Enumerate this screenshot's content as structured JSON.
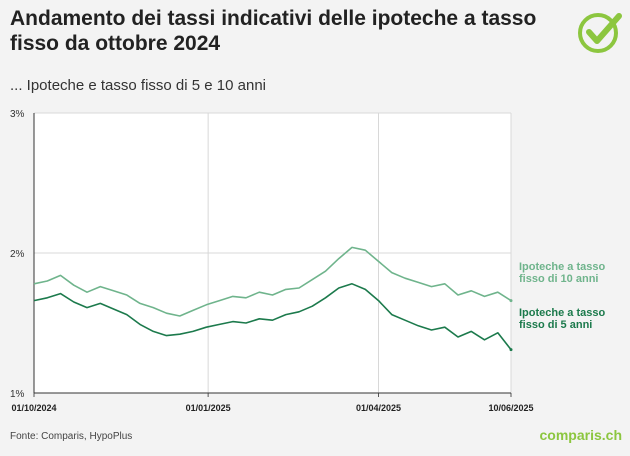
{
  "header": {
    "title": "Andamento dei tassi indicativi delle ipoteche a tasso fisso da ottobre 2024",
    "subtitle": "... Ipoteche e tasso fisso di 5 e 10 anni"
  },
  "footer": {
    "source": "Fonte: Comparis, HypoPlus",
    "brand": "comparis.ch"
  },
  "colors": {
    "series_10y": "#6fb48c",
    "series_5y": "#1c7a4c",
    "brand": "#8cc63f"
  },
  "chart_data": {
    "type": "line",
    "title": "Andamento dei tassi indicativi delle ipoteche a tasso fisso da ottobre 2024",
    "subtitle": "... Ipoteche e tasso fisso di 5 e 10 anni",
    "ylim": [
      1,
      3
    ],
    "y_ticks": [
      "1%",
      "2%",
      "3%"
    ],
    "y_tick_values": [
      1,
      2,
      3
    ],
    "xlim": [
      "2024-10-01",
      "2025-06-10"
    ],
    "x_ticks": [
      "01/10/2024",
      "01/01/2025",
      "01/04/2025",
      "10/06/2025"
    ],
    "x_tick_values": [
      "2024-10-01",
      "2025-01-01",
      "2025-04-01",
      "2025-06-10"
    ],
    "grid": true,
    "series": [
      {
        "name": "Ipoteche a tasso fisso di 10 anni",
        "label_lines": [
          "Ipoteche a tasso",
          "fisso di 10 anni"
        ],
        "x": [
          "2024-10-01",
          "2024-10-08",
          "2024-10-15",
          "2024-10-22",
          "2024-10-29",
          "2024-11-05",
          "2024-11-12",
          "2024-11-19",
          "2024-11-26",
          "2024-12-03",
          "2024-12-10",
          "2024-12-17",
          "2024-12-24",
          "2024-12-31",
          "2025-01-07",
          "2025-01-14",
          "2025-01-21",
          "2025-01-28",
          "2025-02-04",
          "2025-02-11",
          "2025-02-18",
          "2025-02-25",
          "2025-03-04",
          "2025-03-11",
          "2025-03-18",
          "2025-03-25",
          "2025-04-01",
          "2025-04-08",
          "2025-04-15",
          "2025-04-22",
          "2025-04-29",
          "2025-05-06",
          "2025-05-13",
          "2025-05-20",
          "2025-05-27",
          "2025-06-03",
          "2025-06-10"
        ],
        "y": [
          1.78,
          1.8,
          1.84,
          1.77,
          1.72,
          1.76,
          1.73,
          1.7,
          1.64,
          1.61,
          1.57,
          1.55,
          1.59,
          1.63,
          1.66,
          1.69,
          1.68,
          1.72,
          1.7,
          1.74,
          1.75,
          1.81,
          1.87,
          1.96,
          2.04,
          2.02,
          1.94,
          1.86,
          1.82,
          1.79,
          1.76,
          1.78,
          1.7,
          1.73,
          1.69,
          1.72,
          1.66
        ]
      },
      {
        "name": "Ipoteche a tasso fisso di 5 anni",
        "label_lines": [
          "Ipoteche a tasso",
          "fisso di 5 anni"
        ],
        "x": [
          "2024-10-01",
          "2024-10-08",
          "2024-10-15",
          "2024-10-22",
          "2024-10-29",
          "2024-11-05",
          "2024-11-12",
          "2024-11-19",
          "2024-11-26",
          "2024-12-03",
          "2024-12-10",
          "2024-12-17",
          "2024-12-24",
          "2024-12-31",
          "2025-01-07",
          "2025-01-14",
          "2025-01-21",
          "2025-01-28",
          "2025-02-04",
          "2025-02-11",
          "2025-02-18",
          "2025-02-25",
          "2025-03-04",
          "2025-03-11",
          "2025-03-18",
          "2025-03-25",
          "2025-04-01",
          "2025-04-08",
          "2025-04-15",
          "2025-04-22",
          "2025-04-29",
          "2025-05-06",
          "2025-05-13",
          "2025-05-20",
          "2025-05-27",
          "2025-06-03",
          "2025-06-10"
        ],
        "y": [
          1.66,
          1.68,
          1.71,
          1.65,
          1.61,
          1.64,
          1.6,
          1.56,
          1.49,
          1.44,
          1.41,
          1.42,
          1.44,
          1.47,
          1.49,
          1.51,
          1.5,
          1.53,
          1.52,
          1.56,
          1.58,
          1.62,
          1.68,
          1.75,
          1.78,
          1.74,
          1.66,
          1.56,
          1.52,
          1.48,
          1.45,
          1.47,
          1.4,
          1.44,
          1.38,
          1.43,
          1.31
        ]
      }
    ]
  }
}
